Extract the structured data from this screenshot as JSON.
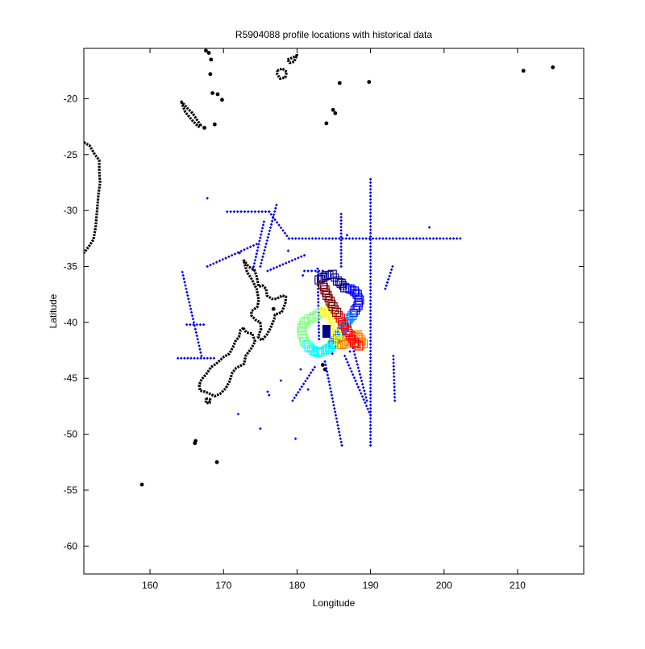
{
  "chart_data": {
    "type": "scatter",
    "title": "R5904088 profile locations with historical data",
    "xlabel": "Longitude",
    "ylabel": "Latitude",
    "xlim": [
      151,
      219
    ],
    "ylim": [
      -62.5,
      -15.5
    ],
    "xticks": [
      160,
      170,
      180,
      190,
      200,
      210
    ],
    "yticks": [
      -20,
      -25,
      -30,
      -35,
      -40,
      -45,
      -50,
      -55,
      -60
    ],
    "grid": false,
    "legend": "none",
    "colors": {
      "coast": "#000000",
      "historical": "#0000ee",
      "float_track": [
        "#00008f",
        "#0000ff",
        "#0080ff",
        "#00ffff",
        "#80ff80",
        "#ffff00",
        "#ff8000",
        "#ff0000",
        "#800000"
      ]
    },
    "historical_lines": [
      {
        "from": [
          170.5,
          -30.1
        ],
        "to": [
          176.2,
          -30.1
        ]
      },
      {
        "from": [
          176.2,
          -30.1
        ],
        "to": [
          178.9,
          -32.5
        ]
      },
      {
        "from": [
          178.9,
          -32.5
        ],
        "to": [
          202.2,
          -32.5
        ]
      },
      {
        "from": [
          190.0,
          -27.2
        ],
        "to": [
          190.0,
          -51.0
        ]
      },
      {
        "from": [
          186.0,
          -30.3
        ],
        "to": [
          186.0,
          -35.0
        ]
      },
      {
        "from": [
          177.2,
          -29.5
        ],
        "to": [
          175.0,
          -35.0
        ]
      },
      {
        "from": [
          175.5,
          -31.0
        ],
        "to": [
          174.0,
          -35.3
        ]
      },
      {
        "from": [
          167.8,
          -35.0
        ],
        "to": [
          174.5,
          -33.0
        ]
      },
      {
        "from": [
          164.4,
          -35.5
        ],
        "to": [
          167.0,
          -43.0
        ]
      },
      {
        "from": [
          165.0,
          -40.2
        ],
        "to": [
          167.3,
          -40.2
        ]
      },
      {
        "from": [
          163.8,
          -43.2
        ],
        "to": [
          168.7,
          -43.2
        ]
      },
      {
        "from": [
          176.0,
          -35.4
        ],
        "to": [
          181.0,
          -34.0
        ]
      },
      {
        "from": [
          181.0,
          -35.4
        ],
        "to": [
          183.5,
          -35.4
        ]
      },
      {
        "from": [
          182.8,
          -35.2
        ],
        "to": [
          183.0,
          -41.5
        ]
      },
      {
        "from": [
          186.5,
          -43.0
        ],
        "to": [
          190.0,
          -48.3
        ]
      },
      {
        "from": [
          183.8,
          -43.5
        ],
        "to": [
          186.1,
          -51.0
        ]
      },
      {
        "from": [
          187.5,
          -42.0
        ],
        "to": [
          189.5,
          -47.0
        ]
      },
      {
        "from": [
          182.4,
          -44.0
        ],
        "to": [
          179.4,
          -47.0
        ]
      },
      {
        "from": [
          193.1,
          -43.0
        ],
        "to": [
          193.3,
          -47.0
        ]
      },
      {
        "from": [
          193.0,
          -35.0
        ],
        "to": [
          192.0,
          -37.0
        ]
      }
    ],
    "historical_points": [
      [
        167.8,
        -28.9
      ],
      [
        172.2,
        -33.8
      ],
      [
        178.8,
        -33.6
      ],
      [
        180.8,
        -35.8
      ],
      [
        186.8,
        -32.2
      ],
      [
        198.0,
        -31.5
      ],
      [
        181.5,
        -46.0
      ],
      [
        177.8,
        -45.2
      ],
      [
        175.0,
        -49.5
      ],
      [
        176.2,
        -46.5
      ],
      [
        179.8,
        -50.4
      ],
      [
        176.0,
        -46.2
      ],
      [
        172.0,
        -48.2
      ],
      [
        180.5,
        -44.2
      ],
      [
        184.8,
        -42.8
      ],
      [
        187.2,
        -42.6
      ],
      [
        185.8,
        -36.9
      ]
    ],
    "coast_outlines": [
      {
        "name": "North Island",
        "points": [
          [
            172.7,
            -34.4
          ],
          [
            173.4,
            -35.0
          ],
          [
            174.2,
            -35.3
          ],
          [
            174.5,
            -35.9
          ],
          [
            174.8,
            -36.8
          ],
          [
            175.3,
            -36.7
          ],
          [
            175.8,
            -37.0
          ],
          [
            175.9,
            -37.6
          ],
          [
            176.6,
            -37.9
          ],
          [
            177.2,
            -37.9
          ],
          [
            178.0,
            -37.6
          ],
          [
            178.5,
            -37.7
          ],
          [
            178.4,
            -38.3
          ],
          [
            177.9,
            -39.1
          ],
          [
            177.0,
            -39.3
          ],
          [
            176.9,
            -39.7
          ],
          [
            176.4,
            -40.5
          ],
          [
            175.9,
            -41.1
          ],
          [
            175.2,
            -41.6
          ],
          [
            174.7,
            -41.3
          ],
          [
            175.1,
            -40.6
          ],
          [
            175.0,
            -40.0
          ],
          [
            174.4,
            -39.8
          ],
          [
            173.8,
            -39.4
          ],
          [
            173.8,
            -39.0
          ],
          [
            174.6,
            -38.6
          ],
          [
            174.8,
            -38.0
          ],
          [
            174.5,
            -37.0
          ],
          [
            174.2,
            -36.6
          ],
          [
            173.8,
            -36.1
          ],
          [
            173.2,
            -35.5
          ],
          [
            172.7,
            -34.4
          ]
        ]
      },
      {
        "name": "South Island",
        "points": [
          [
            172.7,
            -40.5
          ],
          [
            173.1,
            -40.9
          ],
          [
            173.9,
            -41.0
          ],
          [
            174.3,
            -41.7
          ],
          [
            173.8,
            -42.3
          ],
          [
            173.0,
            -43.0
          ],
          [
            172.8,
            -43.7
          ],
          [
            171.7,
            -44.1
          ],
          [
            171.2,
            -44.5
          ],
          [
            170.8,
            -45.3
          ],
          [
            170.3,
            -45.9
          ],
          [
            169.5,
            -46.4
          ],
          [
            168.8,
            -46.6
          ],
          [
            168.2,
            -46.4
          ],
          [
            167.5,
            -46.2
          ],
          [
            166.8,
            -46.1
          ],
          [
            166.7,
            -45.6
          ],
          [
            167.0,
            -45.1
          ],
          [
            167.8,
            -44.5
          ],
          [
            168.3,
            -44.0
          ],
          [
            169.0,
            -43.7
          ],
          [
            170.0,
            -43.1
          ],
          [
            170.8,
            -42.8
          ],
          [
            171.3,
            -42.2
          ],
          [
            171.6,
            -41.7
          ],
          [
            172.1,
            -41.3
          ],
          [
            172.3,
            -40.7
          ],
          [
            172.7,
            -40.5
          ]
        ]
      },
      {
        "name": "Stewart Island",
        "points": [
          [
            167.6,
            -46.8
          ],
          [
            168.2,
            -46.9
          ],
          [
            168.1,
            -47.2
          ],
          [
            167.6,
            -47.2
          ],
          [
            167.6,
            -46.8
          ]
        ]
      },
      {
        "name": "Australia coast",
        "points": [
          [
            151.0,
            -23.9
          ],
          [
            151.8,
            -24.2
          ],
          [
            152.5,
            -25.0
          ],
          [
            153.1,
            -25.5
          ],
          [
            153.1,
            -26.5
          ],
          [
            153.2,
            -27.5
          ],
          [
            153.0,
            -28.5
          ],
          [
            152.8,
            -30.0
          ],
          [
            152.6,
            -31.5
          ],
          [
            152.3,
            -32.6
          ],
          [
            151.7,
            -33.2
          ],
          [
            151.0,
            -33.8
          ]
        ]
      },
      {
        "name": "New Caledonia",
        "points": [
          [
            164.2,
            -20.2
          ],
          [
            165.0,
            -20.8
          ],
          [
            165.8,
            -21.3
          ],
          [
            166.4,
            -21.9
          ],
          [
            166.9,
            -22.4
          ],
          [
            166.6,
            -22.5
          ],
          [
            165.7,
            -21.9
          ],
          [
            164.8,
            -21.2
          ],
          [
            164.2,
            -20.2
          ]
        ]
      },
      {
        "name": "Fiji",
        "points": [
          [
            177.3,
            -17.5
          ],
          [
            178.0,
            -17.3
          ],
          [
            178.6,
            -17.6
          ],
          [
            178.4,
            -18.1
          ],
          [
            177.7,
            -18.2
          ],
          [
            177.3,
            -17.8
          ],
          [
            177.3,
            -17.5
          ]
        ]
      },
      {
        "name": "Vanua Levu",
        "points": [
          [
            178.7,
            -16.5
          ],
          [
            179.5,
            -16.3
          ],
          [
            180.0,
            -16.1
          ],
          [
            179.6,
            -16.7
          ],
          [
            179.0,
            -16.8
          ],
          [
            178.7,
            -16.5
          ]
        ]
      }
    ],
    "coast_dots": [
      [
        168.0,
        -15.9
      ],
      [
        168.3,
        -16.5
      ],
      [
        167.6,
        -15.7
      ],
      [
        168.2,
        -17.8
      ],
      [
        168.5,
        -19.5
      ],
      [
        169.2,
        -19.6
      ],
      [
        169.8,
        -20.1
      ],
      [
        168.8,
        -22.3
      ],
      [
        167.4,
        -22.6
      ],
      [
        184.9,
        -21.0
      ],
      [
        185.2,
        -21.3
      ],
      [
        184.0,
        -22.2
      ],
      [
        185.8,
        -18.6
      ],
      [
        189.8,
        -18.5
      ],
      [
        210.8,
        -17.5
      ],
      [
        214.8,
        -17.2
      ],
      [
        158.9,
        -54.5
      ],
      [
        166.1,
        -50.8
      ],
      [
        166.2,
        -50.6
      ],
      [
        169.1,
        -52.5
      ],
      [
        183.5,
        -43.8
      ],
      [
        183.8,
        -44.2
      ],
      [
        176.8,
        -38.8
      ]
    ],
    "float_profiles": [
      [
        183.0,
        -36.2
      ],
      [
        183.5,
        -36.0
      ],
      [
        184.0,
        -35.8
      ],
      [
        184.8,
        -35.7
      ],
      [
        185.5,
        -36.3
      ],
      [
        186.0,
        -36.5
      ],
      [
        186.5,
        -36.9
      ],
      [
        187.2,
        -37.0
      ],
      [
        187.8,
        -37.2
      ],
      [
        188.2,
        -37.5
      ],
      [
        188.5,
        -38.0
      ],
      [
        188.3,
        -38.5
      ],
      [
        187.9,
        -38.9
      ],
      [
        187.5,
        -39.4
      ],
      [
        187.0,
        -39.7
      ],
      [
        186.7,
        -40.1
      ],
      [
        186.2,
        -40.6
      ],
      [
        185.8,
        -41.0
      ],
      [
        185.5,
        -41.4
      ],
      [
        185.0,
        -41.8
      ],
      [
        184.6,
        -42.2
      ],
      [
        184.1,
        -42.4
      ],
      [
        183.5,
        -42.6
      ],
      [
        182.8,
        -42.7
      ],
      [
        182.2,
        -42.5
      ],
      [
        181.6,
        -42.2
      ],
      [
        181.0,
        -41.7
      ],
      [
        180.7,
        -41.1
      ],
      [
        180.6,
        -40.5
      ],
      [
        181.0,
        -40.0
      ],
      [
        181.6,
        -39.7
      ],
      [
        182.3,
        -39.5
      ],
      [
        183.0,
        -39.2
      ],
      [
        183.7,
        -39.0
      ],
      [
        184.3,
        -39.2
      ],
      [
        184.9,
        -39.7
      ],
      [
        185.2,
        -40.3
      ],
      [
        185.4,
        -41.0
      ],
      [
        185.7,
        -41.6
      ],
      [
        186.1,
        -42.0
      ],
      [
        186.7,
        -41.9
      ],
      [
        187.2,
        -41.6
      ],
      [
        187.7,
        -41.3
      ],
      [
        188.2,
        -41.1
      ],
      [
        188.6,
        -41.5
      ],
      [
        189.0,
        -41.9
      ],
      [
        188.4,
        -42.1
      ],
      [
        187.8,
        -41.8
      ],
      [
        187.3,
        -41.2
      ],
      [
        186.8,
        -40.7
      ],
      [
        186.3,
        -40.2
      ],
      [
        185.9,
        -39.6
      ],
      [
        185.4,
        -39.1
      ],
      [
        184.9,
        -38.6
      ],
      [
        184.5,
        -38.1
      ],
      [
        184.1,
        -37.6
      ],
      [
        183.8,
        -37.1
      ],
      [
        183.5,
        -36.6
      ]
    ],
    "float_latest": [
      184.0,
      -40.8
    ]
  }
}
